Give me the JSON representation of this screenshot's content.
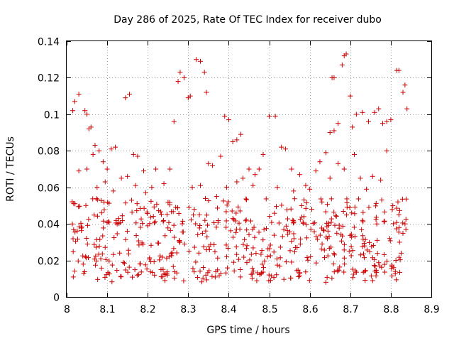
{
  "chart_data": {
    "type": "scatter",
    "title": "Day 286 of 2025, Rate Of TEC Index for receiver dubo",
    "xlabel": "GPS time / hours",
    "ylabel": "ROTI / TECUs",
    "xlim": [
      8.0,
      8.9
    ],
    "ylim": [
      0.0,
      0.14
    ],
    "xticks": [
      "8",
      "8.1",
      "8.2",
      "8.3",
      "8.4",
      "8.5",
      "8.6",
      "8.7",
      "8.8",
      "8.9"
    ],
    "yticks": [
      "0",
      "0.02",
      "0.04",
      "0.06",
      "0.08",
      "0.1",
      "0.12",
      "0.14"
    ],
    "grid": true,
    "legend": "none",
    "marker": "plus",
    "color": "#cc0000",
    "series": [
      {
        "values": [
          [
            8.015,
            0.102
          ],
          [
            8.02,
            0.107
          ],
          [
            8.03,
            0.111
          ],
          [
            8.045,
            0.102
          ],
          [
            8.05,
            0.1
          ],
          [
            8.055,
            0.092
          ],
          [
            8.06,
            0.093
          ],
          [
            8.065,
            0.078
          ],
          [
            8.07,
            0.083
          ],
          [
            8.08,
            0.08
          ],
          [
            8.09,
            0.074
          ],
          [
            8.1,
            0.07
          ],
          [
            8.11,
            0.081
          ],
          [
            8.12,
            0.082
          ],
          [
            8.145,
            0.109
          ],
          [
            8.155,
            0.111
          ],
          [
            8.165,
            0.078
          ],
          [
            8.175,
            0.077
          ],
          [
            8.19,
            0.069
          ],
          [
            8.265,
            0.096
          ],
          [
            8.275,
            0.118
          ],
          [
            8.28,
            0.123
          ],
          [
            8.29,
            0.12
          ],
          [
            8.3,
            0.109
          ],
          [
            8.305,
            0.11
          ],
          [
            8.32,
            0.13
          ],
          [
            8.33,
            0.129
          ],
          [
            8.34,
            0.123
          ],
          [
            8.345,
            0.112
          ],
          [
            8.35,
            0.073
          ],
          [
            8.36,
            0.072
          ],
          [
            8.38,
            0.077
          ],
          [
            8.39,
            0.099
          ],
          [
            8.4,
            0.097
          ],
          [
            8.41,
            0.085
          ],
          [
            8.42,
            0.086
          ],
          [
            8.43,
            0.089
          ],
          [
            8.45,
            0.07
          ],
          [
            8.465,
            0.067
          ],
          [
            8.475,
            0.07
          ],
          [
            8.485,
            0.078
          ],
          [
            8.5,
            0.099
          ],
          [
            8.515,
            0.099
          ],
          [
            8.53,
            0.082
          ],
          [
            8.54,
            0.081
          ],
          [
            8.555,
            0.07
          ],
          [
            8.575,
            0.067
          ],
          [
            8.59,
            0.061
          ],
          [
            8.6,
            0.059
          ],
          [
            8.615,
            0.069
          ],
          [
            8.625,
            0.074
          ],
          [
            8.64,
            0.079
          ],
          [
            8.65,
            0.09
          ],
          [
            8.66,
            0.091
          ],
          [
            8.67,
            0.095
          ],
          [
            8.68,
            0.127
          ],
          [
            8.685,
            0.132
          ],
          [
            8.69,
            0.133
          ],
          [
            8.7,
            0.11
          ],
          [
            8.705,
            0.093
          ],
          [
            8.715,
            0.1
          ],
          [
            8.73,
            0.101
          ],
          [
            8.745,
            0.096
          ],
          [
            8.76,
            0.101
          ],
          [
            8.77,
            0.103
          ],
          [
            8.78,
            0.095
          ],
          [
            8.79,
            0.096
          ],
          [
            8.8,
            0.097
          ],
          [
            8.815,
            0.124
          ],
          [
            8.82,
            0.124
          ],
          [
            8.83,
            0.112
          ],
          [
            8.835,
            0.116
          ],
          [
            8.84,
            0.103
          ],
          [
            8.655,
            0.12
          ],
          [
            8.66,
            0.12
          ],
          [
            8.24,
            0.062
          ],
          [
            8.22,
            0.07
          ],
          [
            8.03,
            0.069
          ],
          [
            8.05,
            0.07
          ],
          [
            8.075,
            0.06
          ],
          [
            8.095,
            0.063
          ],
          [
            8.115,
            0.058
          ],
          [
            8.135,
            0.065
          ],
          [
            8.15,
            0.066
          ],
          [
            8.17,
            0.061
          ],
          [
            8.195,
            0.057
          ],
          [
            8.21,
            0.06
          ],
          [
            8.255,
            0.07
          ],
          [
            8.31,
            0.06
          ],
          [
            8.33,
            0.061
          ],
          [
            8.37,
            0.055
          ],
          [
            8.395,
            0.06
          ],
          [
            8.42,
            0.063
          ],
          [
            8.435,
            0.065
          ],
          [
            8.46,
            0.061
          ],
          [
            8.52,
            0.06
          ],
          [
            8.56,
            0.058
          ],
          [
            8.58,
            0.05
          ],
          [
            8.605,
            0.048
          ],
          [
            8.63,
            0.052
          ],
          [
            8.65,
            0.065
          ],
          [
            8.67,
            0.073
          ],
          [
            8.685,
            0.07
          ],
          [
            8.71,
            0.078
          ],
          [
            8.725,
            0.065
          ],
          [
            8.74,
            0.059
          ],
          [
            8.755,
            0.066
          ],
          [
            8.775,
            0.064
          ],
          [
            8.79,
            0.08
          ],
          [
            8.805,
            0.05
          ],
          [
            8.82,
            0.045
          ],
          [
            8.835,
            0.04
          ]
        ]
      }
    ],
    "noise_seed": 286,
    "noise_count": 560
  }
}
